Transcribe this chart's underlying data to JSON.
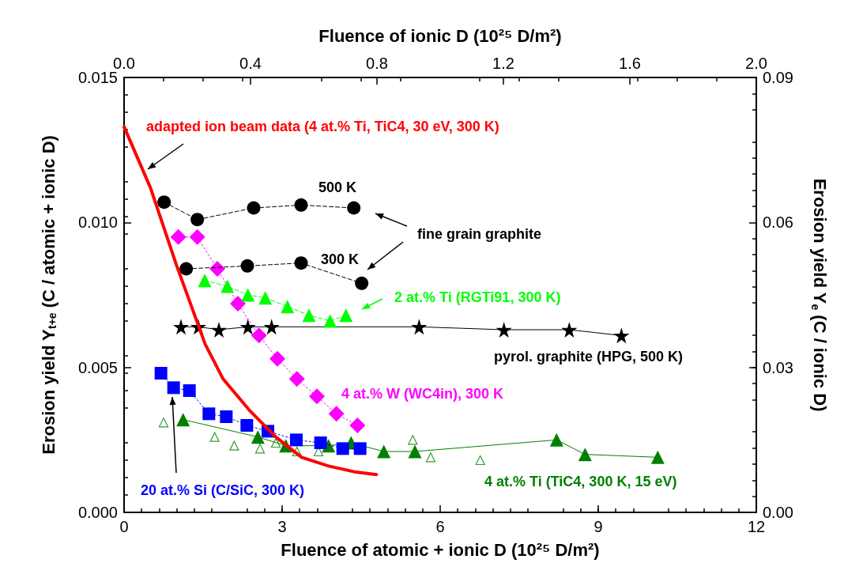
{
  "chart_data": {
    "type": "line",
    "xlabel": "Fluence of atomic + ionic D (10²⁵ D/m²)",
    "x2label": "Fluence of ionic D (10²⁵ D/m²)",
    "ylabel": "Erosion yield Y$_{t+e}$ (C / atomic + ionic D)",
    "y2label": "Erosion yield Y$_{e}$ (C / ionic D)",
    "xlim": [
      0,
      12
    ],
    "xticks": [
      0,
      3,
      6,
      9,
      12
    ],
    "x2lim": [
      0,
      2
    ],
    "x2ticks": [
      {
        "value": 0,
        "label": "0.0"
      },
      {
        "value": 0.4,
        "label": "0.4"
      },
      {
        "value": 0.8,
        "label": "0.8"
      },
      {
        "value": 1.2,
        "label": "1.2"
      },
      {
        "value": 1.6,
        "label": "1.6"
      },
      {
        "value": 2,
        "label": "2.0"
      }
    ],
    "ylim": [
      0,
      0.015
    ],
    "yticks": [
      {
        "value": 0,
        "label": "0.000"
      },
      {
        "value": 0.005,
        "label": "0.005"
      },
      {
        "value": 0.01,
        "label": "0.010"
      },
      {
        "value": 0.015,
        "label": "0.015"
      }
    ],
    "y2lim": [
      0,
      0.09
    ],
    "y2ticks": [
      {
        "value": 0,
        "label": "0.00"
      },
      {
        "value": 0.03,
        "label": "0.03"
      },
      {
        "value": 0.06,
        "label": "0.06"
      },
      {
        "value": 0.09,
        "label": "0.09"
      }
    ],
    "grid": false,
    "annotations": [
      "fine grain graphite"
    ],
    "series": [
      {
        "name": "adapted ion beam data (4 at.% Ti, TiC4, 30 eV, 300 K)",
        "color": "#ff0000",
        "marker": "none",
        "line_style": "solid",
        "x": [
          0,
          0.5,
          1.0,
          1.24,
          1.54,
          1.88,
          2.39,
          2.88,
          3.37,
          3.88,
          4.37,
          4.79
        ],
        "values": [
          0.0133,
          0.0112,
          0.0085,
          0.0073,
          0.0058,
          0.0046,
          0.0035,
          0.0026,
          0.0019,
          0.0016,
          0.0014,
          0.0013
        ]
      },
      {
        "name": "500 K",
        "color": "#000000",
        "marker": "circle",
        "line_style": "dashed",
        "x": [
          0.76,
          1.39,
          2.46,
          3.36,
          4.36
        ],
        "values": [
          0.0107,
          0.0101,
          0.0105,
          0.0106,
          0.0105
        ]
      },
      {
        "name": "300 K",
        "color": "#000000",
        "marker": "circle",
        "line_style": "dashed",
        "x": [
          1.18,
          2.34,
          3.36,
          4.51
        ],
        "values": [
          0.0084,
          0.0085,
          0.0086,
          0.0079
        ]
      },
      {
        "name": "2 at.% Ti (RGTi91, 300 K)",
        "color": "#00ff00",
        "marker": "triangle",
        "line_style": "dashed",
        "x": [
          1.53,
          1.96,
          2.35,
          2.68,
          3.1,
          3.51,
          3.91,
          4.21
        ],
        "values": [
          0.008,
          0.0078,
          0.0075,
          0.0074,
          0.0071,
          0.0068,
          0.0066,
          0.0068
        ]
      },
      {
        "name": "pyrol. graphite (HPG, 500 K)",
        "color": "#000000",
        "marker": "star",
        "line_style": "solid",
        "x": [
          1.08,
          1.41,
          1.8,
          2.35,
          2.8,
          3.91,
          5.6,
          7.21,
          8.45,
          9.44
        ],
        "values": [
          0.0064,
          0.0064,
          0.0063,
          0.0064,
          0.0064,
          null,
          0.0064,
          0.0063,
          0.0063,
          0.0061
        ]
      },
      {
        "name": "4 at.% W (WC4in), 300 K",
        "color": "#ff00ff",
        "marker": "diamond",
        "line_style": "dotted",
        "x": [
          1.03,
          1.39,
          1.77,
          2.16,
          2.56,
          2.91,
          3.28,
          3.66,
          4.03,
          4.43
        ],
        "values": [
          0.0095,
          0.0095,
          0.0084,
          0.0072,
          0.0061,
          0.0053,
          0.0046,
          0.004,
          0.0034,
          0.003
        ]
      },
      {
        "name": "20 at.% Si (C/SiC, 300 K)",
        "color": "#0000ff",
        "marker": "square",
        "line_style": "dotted",
        "x": [
          0.7,
          0.94,
          1.24,
          1.61,
          1.94,
          2.33,
          2.73,
          3.27,
          3.73,
          4.15,
          4.48
        ],
        "values": [
          0.0048,
          0.0043,
          0.0042,
          0.0034,
          0.0033,
          0.003,
          0.0028,
          0.0025,
          0.0024,
          0.0022,
          0.0022
        ]
      },
      {
        "name": "4 at.% Ti (TiC4, 300 K, 15 eV)",
        "color": "#008000",
        "marker": "triangle",
        "line_style": "solid",
        "x": [
          1.12,
          2.54,
          3.07,
          3.88,
          4.31,
          4.93,
          5.52,
          8.21,
          8.75,
          10.13
        ],
        "values": [
          0.0032,
          0.0026,
          0.0023,
          0.0023,
          0.0024,
          0.0021,
          0.0021,
          0.0025,
          0.002,
          0.0019
        ]
      },
      {
        "type": "scatter",
        "color": "#008000",
        "marker": "triangle",
        "x": [
          0.75,
          1.72,
          2.09,
          2.58,
          2.88,
          3.28,
          3.69,
          5.48,
          5.82,
          6.76
        ],
        "values": [
          0.0031,
          0.0026,
          0.0023,
          0.0022,
          0.0024,
          0.0021,
          0.0021,
          0.0025,
          0.0019,
          0.0018
        ]
      }
    ]
  }
}
